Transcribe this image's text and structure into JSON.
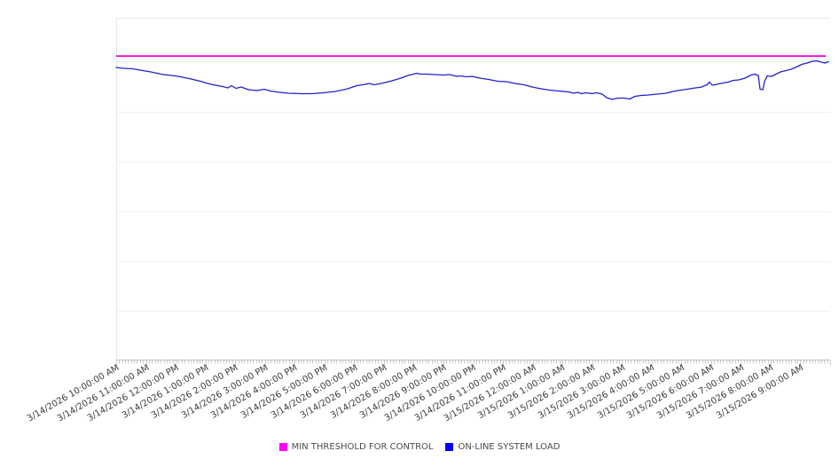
{
  "legend": {
    "items": [
      {
        "label": "MIN THRESHOLD FOR CONTROL",
        "color": "#ff00ff"
      },
      {
        "label": "ON-LINE SYSTEM LOAD",
        "color": "#0000ff"
      }
    ]
  },
  "colors": {
    "threshold_line": "#ee00dc",
    "load_line": "#2121cd",
    "gridline": "#efefef",
    "plot_border": "#e6e6e6",
    "axis_line": "#bfbfbf",
    "tick": "#c9c9c9",
    "label_text": "#3c3c3c"
  },
  "chart_data": {
    "type": "line",
    "title": "",
    "xlabel": "",
    "ylabel": "",
    "x_axis": {
      "range": [
        "3/14/2026 10:00:00 AM",
        "3/15/2026 10:00:00 AM"
      ],
      "major_tick_interval": "1 hour",
      "minor_tick_interval": "6 minutes",
      "labels": [
        "3/14/2026 10:00:00 AM",
        "3/14/2026 11:00:00 AM",
        "3/14/2026 12:00:00 PM",
        "3/14/2026 1:00:00 PM",
        "3/14/2026 2:00:00 PM",
        "3/14/2026 3:00:00 PM",
        "3/14/2026 4:00:00 PM",
        "3/14/2026 5:00:00 PM",
        "3/14/2026 6:00:00 PM",
        "3/14/2026 7:00:00 PM",
        "3/14/2026 8:00:00 PM",
        "3/14/2026 9:00:00 PM",
        "3/14/2026 10:00:00 PM",
        "3/14/2026 11:00:00 PM",
        "3/15/2026 12:00:00 AM",
        "3/15/2026 1:00:00 AM",
        "3/15/2026 2:00:00 AM",
        "3/15/2026 3:00:00 AM",
        "3/15/2026 4:00:00 AM",
        "3/15/2026 5:00:00 AM",
        "3/15/2026 6:00:00 AM",
        "3/15/2026 7:00:00 AM",
        "3/15/2026 8:00:00 AM",
        "3/15/2026 9:00:00 AM"
      ]
    },
    "y_axis": {
      "labels_visible": false,
      "note": "no numeric tick labels shown; values below are fractions of plot height (0=bottom axis, 1=top border)",
      "gridlines_v": [
        0.872,
        0.725,
        0.579,
        0.434,
        0.288,
        0.143
      ]
    },
    "legend_position": "bottom-center",
    "series": [
      {
        "name": "MIN THRESHOLD FOR CONTROL",
        "type": "constant",
        "value_v": 0.888,
        "t_start": 0.0,
        "t_end": 0.994
      },
      {
        "name": "ON-LINE SYSTEM LOAD",
        "type": "sampled",
        "points": [
          [
            0.0,
            0.8545
          ],
          [
            0.0112,
            0.8519
          ],
          [
            0.0236,
            0.8506
          ],
          [
            0.0335,
            0.8468
          ],
          [
            0.0484,
            0.8416
          ],
          [
            0.0658,
            0.8338
          ],
          [
            0.0832,
            0.8299
          ],
          [
            0.0994,
            0.8234
          ],
          [
            0.1155,
            0.8156
          ],
          [
            0.1329,
            0.8052
          ],
          [
            0.1491,
            0.7987
          ],
          [
            0.1565,
            0.7948
          ],
          [
            0.1615,
            0.8013
          ],
          [
            0.1677,
            0.7935
          ],
          [
            0.1752,
            0.7974
          ],
          [
            0.1851,
            0.7896
          ],
          [
            0.1975,
            0.787
          ],
          [
            0.2075,
            0.7909
          ],
          [
            0.2161,
            0.7857
          ],
          [
            0.2286,
            0.7818
          ],
          [
            0.241,
            0.7792
          ],
          [
            0.2596,
            0.7779
          ],
          [
            0.2745,
            0.7779
          ],
          [
            0.2907,
            0.7805
          ],
          [
            0.3068,
            0.7844
          ],
          [
            0.3242,
            0.7922
          ],
          [
            0.3366,
            0.8013
          ],
          [
            0.3491,
            0.8052
          ],
          [
            0.354,
            0.8078
          ],
          [
            0.3615,
            0.8039
          ],
          [
            0.3739,
            0.8091
          ],
          [
            0.3863,
            0.8156
          ],
          [
            0.3988,
            0.8234
          ],
          [
            0.4087,
            0.8312
          ],
          [
            0.4161,
            0.8351
          ],
          [
            0.4211,
            0.8377
          ],
          [
            0.4261,
            0.8351
          ],
          [
            0.4348,
            0.8351
          ],
          [
            0.446,
            0.8338
          ],
          [
            0.4584,
            0.8325
          ],
          [
            0.4671,
            0.8338
          ],
          [
            0.477,
            0.8286
          ],
          [
            0.4832,
            0.8299
          ],
          [
            0.4907,
            0.8273
          ],
          [
            0.4981,
            0.8286
          ],
          [
            0.5093,
            0.8234
          ],
          [
            0.5217,
            0.8195
          ],
          [
            0.5342,
            0.8143
          ],
          [
            0.5466,
            0.813
          ],
          [
            0.559,
            0.8078
          ],
          [
            0.5714,
            0.8039
          ],
          [
            0.5826,
            0.7974
          ],
          [
            0.595,
            0.7922
          ],
          [
            0.6075,
            0.7883
          ],
          [
            0.6199,
            0.7857
          ],
          [
            0.6335,
            0.7831
          ],
          [
            0.641,
            0.7792
          ],
          [
            0.646,
            0.7818
          ],
          [
            0.6522,
            0.7779
          ],
          [
            0.6584,
            0.7805
          ],
          [
            0.6658,
            0.7779
          ],
          [
            0.6733,
            0.7805
          ],
          [
            0.6807,
            0.7766
          ],
          [
            0.687,
            0.7662
          ],
          [
            0.6944,
            0.761
          ],
          [
            0.7031,
            0.7649
          ],
          [
            0.7118,
            0.7649
          ],
          [
            0.7193,
            0.7623
          ],
          [
            0.7267,
            0.7701
          ],
          [
            0.7354,
            0.7727
          ],
          [
            0.7453,
            0.774
          ],
          [
            0.7578,
            0.7766
          ],
          [
            0.7702,
            0.7792
          ],
          [
            0.7826,
            0.7857
          ],
          [
            0.795,
            0.7896
          ],
          [
            0.8075,
            0.7935
          ],
          [
            0.8199,
            0.7974
          ],
          [
            0.8273,
            0.8039
          ],
          [
            0.8311,
            0.8117
          ],
          [
            0.8348,
            0.8026
          ],
          [
            0.841,
            0.8052
          ],
          [
            0.8497,
            0.8091
          ],
          [
            0.8571,
            0.8117
          ],
          [
            0.8646,
            0.8169
          ],
          [
            0.872,
            0.8182
          ],
          [
            0.8807,
            0.8234
          ],
          [
            0.8894,
            0.8325
          ],
          [
            0.8944,
            0.8351
          ],
          [
            0.8994,
            0.8312
          ],
          [
            0.9019,
            0.7909
          ],
          [
            0.9057,
            0.7896
          ],
          [
            0.9081,
            0.813
          ],
          [
            0.9118,
            0.8299
          ],
          [
            0.918,
            0.8286
          ],
          [
            0.9242,
            0.8351
          ],
          [
            0.9304,
            0.8416
          ],
          [
            0.9379,
            0.8455
          ],
          [
            0.9453,
            0.8494
          ],
          [
            0.9528,
            0.8558
          ],
          [
            0.9602,
            0.8636
          ],
          [
            0.9677,
            0.8675
          ],
          [
            0.9752,
            0.8727
          ],
          [
            0.9814,
            0.874
          ],
          [
            0.9876,
            0.8701
          ],
          [
            0.9925,
            0.8675
          ],
          [
            0.9975,
            0.8714
          ]
        ]
      }
    ]
  }
}
